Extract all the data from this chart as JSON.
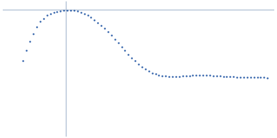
{
  "dot_color": "#2d5fa8",
  "dot_size": 3.5,
  "background_color": "#ffffff",
  "axh_color": "#99aec8",
  "axv_color": "#99aec8",
  "axh_lw": 0.7,
  "axv_lw": 0.7,
  "x_values": [
    0.03,
    0.035,
    0.04,
    0.045,
    0.05,
    0.055,
    0.06,
    0.065,
    0.07,
    0.075,
    0.08,
    0.085,
    0.09,
    0.095,
    0.1,
    0.105,
    0.11,
    0.115,
    0.12,
    0.125,
    0.13,
    0.135,
    0.14,
    0.145,
    0.15,
    0.155,
    0.16,
    0.165,
    0.17,
    0.175,
    0.18,
    0.185,
    0.19,
    0.195,
    0.2,
    0.205,
    0.21,
    0.215,
    0.22,
    0.225,
    0.23,
    0.235,
    0.24,
    0.245,
    0.25,
    0.255,
    0.26,
    0.265,
    0.27,
    0.275,
    0.28,
    0.285,
    0.29,
    0.295,
    0.3,
    0.305,
    0.31,
    0.315,
    0.32,
    0.325,
    0.33,
    0.335,
    0.34,
    0.345,
    0.35,
    0.355,
    0.36,
    0.365,
    0.37,
    0.375,
    0.38,
    0.385,
    0.39
  ],
  "y_values": [
    0.4,
    0.52,
    0.63,
    0.72,
    0.8,
    0.86,
    0.9,
    0.935,
    0.955,
    0.97,
    0.98,
    0.988,
    0.993,
    0.996,
    0.995,
    0.99,
    0.982,
    0.97,
    0.955,
    0.935,
    0.91,
    0.882,
    0.85,
    0.815,
    0.778,
    0.738,
    0.696,
    0.652,
    0.607,
    0.562,
    0.518,
    0.475,
    0.433,
    0.394,
    0.358,
    0.326,
    0.298,
    0.274,
    0.255,
    0.24,
    0.228,
    0.22,
    0.215,
    0.212,
    0.21,
    0.21,
    0.212,
    0.215,
    0.218,
    0.222,
    0.225,
    0.228,
    0.23,
    0.23,
    0.228,
    0.225,
    0.222,
    0.218,
    0.215,
    0.212,
    0.21,
    0.208,
    0.207,
    0.206,
    0.205,
    0.204,
    0.203,
    0.202,
    0.201,
    0.2,
    0.199,
    0.198,
    0.197
  ],
  "xlim": [
    0.0,
    0.4
  ],
  "ylim": [
    -0.5,
    1.1
  ],
  "axhline_y": 1.0,
  "axvline_x": 0.093
}
